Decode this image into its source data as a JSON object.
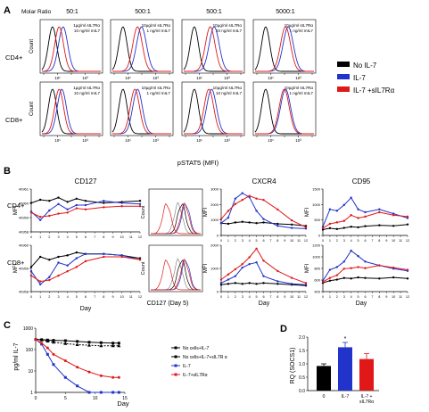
{
  "panels": {
    "A": "A",
    "B": "B",
    "C": "C",
    "D": "D"
  },
  "colors": {
    "none": "#000000",
    "il7": "#2233cc",
    "combo": "#e01818",
    "gray": "#888888"
  },
  "panelA": {
    "molar_ratio_label": "Molar Ratio",
    "ratios": [
      "50:1",
      "500:1",
      "500:1",
      "5000:1"
    ],
    "rows": [
      "CD4+",
      "CD8+"
    ],
    "ylabel": "Count",
    "xlabel": "pSTAT5 (MFI)",
    "treatments": [
      [
        "1μg/ml sIL7Rα",
        "10 ng/ml mIL7"
      ],
      [
        "10μg/ml sIL7Rα",
        "1 ng/ml mIL7"
      ],
      [
        "10μg/ml sIL7Rα",
        "10 ng/ml mIL7"
      ],
      [
        "10μg/ml sIL7Rα",
        "1 ng/ml mIL7"
      ]
    ],
    "ticks": [
      "10⁰",
      "10¹",
      "10²",
      "10³",
      "10⁴",
      "10⁵"
    ]
  },
  "legend": [
    {
      "label": "No IL-7",
      "color": "#000000"
    },
    {
      "label": "IL-7",
      "color": "#2233cc"
    },
    {
      "label": "IL-7 +sIL7Rα",
      "color": "#e01818"
    }
  ],
  "panelB": {
    "cd127_title": "CD127",
    "cxcr4_title": "CXCR4",
    "cd95_title": "CD95",
    "row_labels": [
      "CD4+",
      "CD8+"
    ],
    "mfi": "MFI",
    "count": "Count",
    "day": "Day",
    "hist_xlabel": "CD127 (Day 5)",
    "days": [
      "0",
      "1",
      "2",
      "3",
      "4",
      "5",
      "6",
      "7",
      "8",
      "9",
      "10",
      "11",
      "12"
    ],
    "cd127_yticks": [
      "40961",
      "40960",
      "40959",
      "40958"
    ],
    "cd127_cd8_yticks": [
      "40960",
      "40959",
      "40958"
    ],
    "cxcr4_yticks": [
      "3000",
      "2000",
      "1000",
      "0"
    ],
    "cxcr4_cd8_yticks": [
      "2000",
      "1000",
      "0"
    ],
    "cd95_yticks": [
      "1500",
      "1000",
      "500",
      "0"
    ],
    "cd95_cd8_yticks": [
      "1200",
      "1000",
      "800",
      "600",
      "400"
    ]
  },
  "panelC": {
    "ylabel": "pg/ml IL-7",
    "xlabel": "Day",
    "yticks": [
      "1000",
      "100",
      "10",
      "1"
    ],
    "xticks": [
      "0",
      "5",
      "10",
      "15"
    ],
    "legend": [
      {
        "label": "No cells+IL-7",
        "color": "#000000"
      },
      {
        "label": "No cells+IL-7+sIL7R α",
        "color": "#000000"
      },
      {
        "label": "IL-7",
        "color": "#2233cc"
      },
      {
        "label": "IL-7+sIL7Rα",
        "color": "#e01818"
      }
    ]
  },
  "panelD": {
    "ylabel": "RQ (SOCS1)",
    "yticks": [
      "2.0",
      "1.5",
      "1.0",
      "0.5",
      "0.0"
    ],
    "star": "*"
  },
  "chart_data": [
    {
      "type": "line",
      "panel": "B",
      "title": "CD127",
      "row": "CD4+",
      "ylabel": "MFI",
      "xlabel": "Day",
      "ylim": [
        40957.5,
        40961.5
      ],
      "x": [
        0,
        1,
        2,
        3,
        4,
        5,
        6,
        8,
        10,
        12
      ],
      "series": [
        {
          "color": "#000000",
          "values": [
            40960.2,
            40960.5,
            40960.4,
            40960.7,
            40960.3,
            40960.6,
            40960.4,
            40960.2,
            40960.3,
            40960.4
          ]
        },
        {
          "color": "#2233cc",
          "values": [
            40959.4,
            40958.6,
            40959.5,
            40960.1,
            40959.6,
            40960.0,
            40960.0,
            40960.4,
            40960.2,
            40960.1
          ]
        },
        {
          "color": "#e01818",
          "values": [
            40959.3,
            40958.9,
            40959.0,
            40959.2,
            40959.3,
            40959.7,
            40959.6,
            40959.8,
            40959.9,
            40959.9
          ]
        }
      ]
    },
    {
      "type": "line",
      "panel": "B",
      "title": "CD127",
      "row": "CD8+",
      "ylabel": "MFI",
      "xlabel": "Day",
      "ylim": [
        40957.5,
        40960.7
      ],
      "x": [
        0,
        1,
        2,
        3,
        4,
        5,
        6,
        8,
        10,
        12
      ],
      "series": [
        {
          "color": "#000000",
          "values": [
            40959.2,
            40959.9,
            40959.7,
            40959.9,
            40960.0,
            40960.2,
            40960.1,
            40960.1,
            40960.0,
            40959.8
          ]
        },
        {
          "color": "#2233cc",
          "values": [
            40958.9,
            40958.0,
            40958.5,
            40959.5,
            40959.3,
            40959.8,
            40960.1,
            40960.1,
            40960.0,
            40959.7
          ]
        },
        {
          "color": "#e01818",
          "values": [
            40958.6,
            40958.2,
            40958.3,
            40958.6,
            40958.9,
            40959.2,
            40959.6,
            40959.9,
            40959.9,
            40959.7
          ]
        }
      ]
    },
    {
      "type": "line",
      "panel": "B",
      "title": "CXCR4",
      "row": "CD4+",
      "ylabel": "MFI",
      "xlabel": "Day",
      "ylim": [
        0,
        3400
      ],
      "x": [
        0,
        1,
        2,
        3,
        4,
        5,
        6,
        8,
        10,
        12
      ],
      "series": [
        {
          "color": "#000000",
          "values": [
            900,
            850,
            950,
            1000,
            950,
            900,
            950,
            850,
            800,
            700
          ]
        },
        {
          "color": "#2233cc",
          "values": [
            900,
            1300,
            2700,
            3100,
            2800,
            1800,
            1200,
            700,
            550,
            500
          ]
        },
        {
          "color": "#e01818",
          "values": [
            1200,
            1800,
            2300,
            2600,
            2900,
            2700,
            2600,
            1900,
            1100,
            600
          ]
        }
      ]
    },
    {
      "type": "line",
      "panel": "B",
      "title": "CXCR4",
      "row": "CD8+",
      "ylabel": "MFI",
      "xlabel": "Day",
      "ylim": [
        0,
        2700
      ],
      "x": [
        0,
        1,
        2,
        3,
        4,
        5,
        6,
        8,
        10,
        12
      ],
      "series": [
        {
          "color": "#000000",
          "values": [
            400,
            450,
            500,
            450,
            500,
            450,
            500,
            450,
            400,
            350
          ]
        },
        {
          "color": "#2233cc",
          "values": [
            500,
            700,
            900,
            1400,
            1600,
            1700,
            900,
            600,
            450,
            400
          ]
        },
        {
          "color": "#e01818",
          "values": [
            700,
            1000,
            1300,
            1600,
            2000,
            2500,
            1800,
            1200,
            800,
            500
          ]
        }
      ]
    },
    {
      "type": "line",
      "panel": "B",
      "title": "CD95",
      "row": "CD4+",
      "ylabel": "MFI",
      "xlabel": "Day",
      "ylim": [
        0,
        1600
      ],
      "x": [
        0,
        1,
        2,
        3,
        4,
        5,
        6,
        8,
        10,
        12
      ],
      "series": [
        {
          "color": "#000000",
          "values": [
            200,
            250,
            220,
            260,
            300,
            280,
            320,
            350,
            330,
            380
          ]
        },
        {
          "color": "#2233cc",
          "values": [
            300,
            900,
            850,
            1050,
            1300,
            900,
            800,
            900,
            750,
            600
          ]
        },
        {
          "color": "#e01818",
          "values": [
            250,
            400,
            450,
            500,
            700,
            600,
            650,
            800,
            700,
            650
          ]
        }
      ]
    },
    {
      "type": "line",
      "panel": "B",
      "title": "CD95",
      "row": "CD8+",
      "ylabel": "MFI",
      "xlabel": "Day",
      "ylim": [
        400,
        1250
      ],
      "x": [
        0,
        1,
        2,
        3,
        4,
        5,
        6,
        8,
        10,
        12
      ],
      "series": [
        {
          "color": "#000000",
          "values": [
            560,
            600,
            620,
            650,
            640,
            660,
            650,
            640,
            660,
            640
          ]
        },
        {
          "color": "#2233cc",
          "values": [
            600,
            800,
            850,
            950,
            1150,
            1050,
            950,
            880,
            820,
            780
          ]
        },
        {
          "color": "#e01818",
          "values": [
            580,
            650,
            700,
            820,
            830,
            850,
            830,
            880,
            840,
            800
          ]
        }
      ]
    },
    {
      "type": "line",
      "panel": "C",
      "ylabel": "pg/ml IL-7",
      "xlabel": "Day",
      "yscale": "log",
      "ylim": [
        1,
        1000
      ],
      "xlim": [
        0,
        15
      ],
      "x": [
        0,
        1,
        2,
        3,
        5,
        7,
        9,
        11,
        13,
        14
      ],
      "series": [
        {
          "name": "No cells+IL-7",
          "color": "#000000",
          "values": [
            300,
            290,
            280,
            270,
            260,
            240,
            220,
            210,
            200,
            200
          ]
        },
        {
          "name": "No cells+IL-7+sIL7R α",
          "color": "#000000",
          "values": [
            300,
            280,
            250,
            220,
            190,
            170,
            160,
            150,
            150,
            150
          ]
        },
        {
          "name": "IL-7",
          "color": "#2233cc",
          "values": [
            300,
            180,
            60,
            20,
            5,
            2,
            1,
            1,
            1,
            1
          ]
        },
        {
          "name": "IL-7+sIL7Rα",
          "color": "#e01818",
          "values": [
            300,
            200,
            120,
            60,
            30,
            15,
            9,
            6,
            5,
            5
          ]
        }
      ]
    },
    {
      "type": "bar",
      "panel": "D",
      "ylabel": "RQ (SOCS1)",
      "ylim": [
        0,
        2.0
      ],
      "categories": [
        "0",
        "IL-7",
        "IL-7 + sIL7Rα"
      ],
      "values": [
        0.92,
        1.62,
        1.18
      ],
      "errors": [
        0.08,
        0.18,
        0.2
      ],
      "colors": [
        "#000000",
        "#2233cc",
        "#e01818"
      ]
    }
  ]
}
